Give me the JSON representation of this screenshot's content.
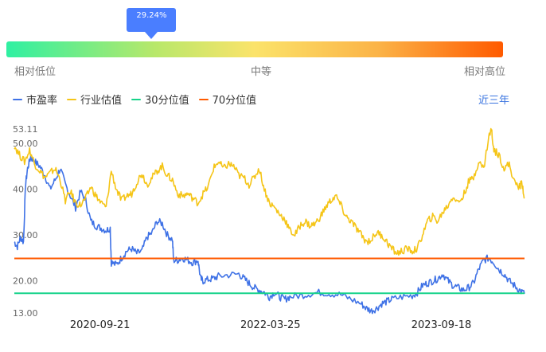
{
  "gauge": {
    "percentile_label": "29.24%",
    "percentile": 0.2924,
    "low_label": "相对低位",
    "mid_label": "中等",
    "high_label": "相对高位",
    "colors": [
      "#2ff0a2",
      "#fbe36a",
      "#ff5a00"
    ]
  },
  "legend": [
    {
      "label": "市盈率",
      "color": "#3f72e6"
    },
    {
      "label": "行业估值",
      "color": "#f5c518"
    },
    {
      "label": "30分位值",
      "color": "#17d38a"
    },
    {
      "label": "70分位值",
      "color": "#ff5a00"
    }
  ],
  "range_button": "近三年",
  "chart_data": {
    "type": "line",
    "ylim": [
      13.0,
      53.11
    ],
    "y_ticks": [
      {
        "label": "53.11",
        "value": 53.11
      },
      {
        "label": "50.00",
        "value": 50.0
      },
      {
        "label": "40.00",
        "value": 40.0
      },
      {
        "label": "30.00",
        "value": 30.0
      },
      {
        "label": "20.00",
        "value": 20.0
      },
      {
        "label": "13.00",
        "value": 13.0
      }
    ],
    "x_ticks": [
      {
        "label": "2020-09-21",
        "t": 0.168
      },
      {
        "label": "2022-03-25",
        "t": 0.502
      },
      {
        "label": "2023-09-18",
        "t": 0.837
      }
    ],
    "reference_lines": [
      {
        "name": "30分位值",
        "value": 17.3,
        "color": "#17d38a"
      },
      {
        "name": "70分位值",
        "value": 24.9,
        "color": "#ff5a00"
      }
    ],
    "series": [
      {
        "name": "市盈率",
        "color": "#3f72e6",
        "points": [
          [
            0.0,
            28.5
          ],
          [
            0.006,
            27.5
          ],
          [
            0.012,
            29.5
          ],
          [
            0.018,
            28.5
          ],
          [
            0.022,
            41.0
          ],
          [
            0.026,
            44.5
          ],
          [
            0.032,
            47.0
          ],
          [
            0.04,
            46.0
          ],
          [
            0.05,
            45.0
          ],
          [
            0.06,
            43.0
          ],
          [
            0.07,
            40.0
          ],
          [
            0.08,
            42.0
          ],
          [
            0.09,
            44.5
          ],
          [
            0.1,
            41.0
          ],
          [
            0.11,
            38.5
          ],
          [
            0.12,
            36.0
          ],
          [
            0.13,
            39.5
          ],
          [
            0.14,
            37.5
          ],
          [
            0.15,
            33.0
          ],
          [
            0.16,
            32.0
          ],
          [
            0.17,
            31.5
          ],
          [
            0.18,
            31.0
          ],
          [
            0.188,
            31.5
          ],
          [
            0.19,
            24.0
          ],
          [
            0.2,
            23.5
          ],
          [
            0.21,
            25.0
          ],
          [
            0.22,
            26.5
          ],
          [
            0.23,
            27.0
          ],
          [
            0.24,
            26.0
          ],
          [
            0.25,
            26.5
          ],
          [
            0.26,
            29.5
          ],
          [
            0.27,
            30.5
          ],
          [
            0.28,
            33.0
          ],
          [
            0.29,
            32.5
          ],
          [
            0.3,
            30.0
          ],
          [
            0.31,
            29.0
          ],
          [
            0.312,
            24.5
          ],
          [
            0.32,
            24.5
          ],
          [
            0.33,
            25.0
          ],
          [
            0.34,
            24.5
          ],
          [
            0.35,
            24.0
          ],
          [
            0.36,
            24.5
          ],
          [
            0.365,
            20.5
          ],
          [
            0.37,
            20.0
          ],
          [
            0.38,
            20.3
          ],
          [
            0.39,
            20.5
          ],
          [
            0.4,
            21.0
          ],
          [
            0.42,
            21.3
          ],
          [
            0.44,
            21.5
          ],
          [
            0.45,
            20.5
          ],
          [
            0.46,
            19.5
          ],
          [
            0.47,
            18.5
          ],
          [
            0.48,
            18.0
          ],
          [
            0.49,
            17.5
          ],
          [
            0.5,
            16.5
          ],
          [
            0.51,
            17.5
          ],
          [
            0.52,
            16.5
          ],
          [
            0.53,
            16.0
          ],
          [
            0.54,
            16.5
          ],
          [
            0.56,
            16.8
          ],
          [
            0.58,
            17.2
          ],
          [
            0.6,
            17.5
          ],
          [
            0.62,
            17.2
          ],
          [
            0.64,
            17.0
          ],
          [
            0.66,
            16.0
          ],
          [
            0.68,
            15.0
          ],
          [
            0.69,
            14.0
          ],
          [
            0.7,
            13.5
          ],
          [
            0.71,
            14.0
          ],
          [
            0.72,
            15.0
          ],
          [
            0.73,
            15.5
          ],
          [
            0.74,
            16.0
          ],
          [
            0.76,
            16.5
          ],
          [
            0.78,
            16.8
          ],
          [
            0.79,
            17.5
          ],
          [
            0.8,
            19.0
          ],
          [
            0.81,
            19.5
          ],
          [
            0.82,
            20.0
          ],
          [
            0.83,
            20.5
          ],
          [
            0.84,
            21.5
          ],
          [
            0.85,
            20.0
          ],
          [
            0.86,
            19.0
          ],
          [
            0.87,
            18.5
          ],
          [
            0.88,
            18.0
          ],
          [
            0.89,
            18.5
          ],
          [
            0.9,
            19.5
          ],
          [
            0.91,
            22.5
          ],
          [
            0.92,
            24.5
          ],
          [
            0.93,
            25.0
          ],
          [
            0.94,
            24.0
          ],
          [
            0.95,
            22.5
          ],
          [
            0.96,
            21.5
          ],
          [
            0.97,
            20.0
          ],
          [
            0.98,
            19.0
          ],
          [
            0.99,
            18.0
          ],
          [
            1.0,
            17.2
          ]
        ]
      },
      {
        "name": "行业估值",
        "color": "#f5c518",
        "points": [
          [
            0.0,
            49.5
          ],
          [
            0.01,
            47.5
          ],
          [
            0.02,
            46.0
          ],
          [
            0.03,
            48.5
          ],
          [
            0.04,
            45.5
          ],
          [
            0.05,
            44.0
          ],
          [
            0.06,
            42.5
          ],
          [
            0.07,
            43.5
          ],
          [
            0.08,
            44.5
          ],
          [
            0.09,
            42.0
          ],
          [
            0.1,
            37.5
          ],
          [
            0.11,
            39.5
          ],
          [
            0.12,
            37.0
          ],
          [
            0.13,
            36.5
          ],
          [
            0.14,
            38.0
          ],
          [
            0.15,
            40.5
          ],
          [
            0.16,
            38.5
          ],
          [
            0.17,
            37.0
          ],
          [
            0.18,
            36.0
          ],
          [
            0.19,
            44.0
          ],
          [
            0.2,
            40.0
          ],
          [
            0.21,
            37.5
          ],
          [
            0.22,
            38.5
          ],
          [
            0.23,
            39.0
          ],
          [
            0.24,
            41.5
          ],
          [
            0.25,
            43.5
          ],
          [
            0.26,
            41.0
          ],
          [
            0.27,
            42.5
          ],
          [
            0.28,
            44.0
          ],
          [
            0.29,
            45.0
          ],
          [
            0.3,
            43.0
          ],
          [
            0.31,
            42.0
          ],
          [
            0.32,
            39.0
          ],
          [
            0.33,
            38.5
          ],
          [
            0.34,
            39.0
          ],
          [
            0.35,
            38.0
          ],
          [
            0.36,
            37.0
          ],
          [
            0.37,
            39.0
          ],
          [
            0.38,
            40.5
          ],
          [
            0.39,
            44.5
          ],
          [
            0.4,
            46.0
          ],
          [
            0.41,
            44.5
          ],
          [
            0.42,
            45.5
          ],
          [
            0.43,
            45.0
          ],
          [
            0.44,
            43.0
          ],
          [
            0.45,
            42.5
          ],
          [
            0.46,
            41.0
          ],
          [
            0.47,
            42.5
          ],
          [
            0.48,
            44.5
          ],
          [
            0.49,
            40.0
          ],
          [
            0.5,
            37.0
          ],
          [
            0.51,
            36.0
          ],
          [
            0.52,
            34.5
          ],
          [
            0.53,
            33.5
          ],
          [
            0.54,
            31.0
          ],
          [
            0.55,
            30.0
          ],
          [
            0.56,
            32.0
          ],
          [
            0.57,
            33.0
          ],
          [
            0.58,
            32.0
          ],
          [
            0.59,
            32.5
          ],
          [
            0.6,
            34.0
          ],
          [
            0.61,
            36.0
          ],
          [
            0.62,
            37.5
          ],
          [
            0.63,
            38.5
          ],
          [
            0.64,
            36.5
          ],
          [
            0.65,
            34.0
          ],
          [
            0.66,
            33.0
          ],
          [
            0.67,
            31.5
          ],
          [
            0.68,
            30.0
          ],
          [
            0.69,
            28.5
          ],
          [
            0.7,
            29.0
          ],
          [
            0.71,
            30.5
          ],
          [
            0.72,
            30.0
          ],
          [
            0.73,
            28.5
          ],
          [
            0.74,
            27.0
          ],
          [
            0.75,
            26.0
          ],
          [
            0.76,
            26.5
          ],
          [
            0.77,
            27.0
          ],
          [
            0.78,
            26.5
          ],
          [
            0.79,
            27.0
          ],
          [
            0.8,
            30.0
          ],
          [
            0.81,
            33.0
          ],
          [
            0.82,
            34.0
          ],
          [
            0.83,
            33.0
          ],
          [
            0.84,
            35.0
          ],
          [
            0.85,
            36.5
          ],
          [
            0.86,
            38.5
          ],
          [
            0.87,
            37.0
          ],
          [
            0.88,
            38.5
          ],
          [
            0.89,
            41.5
          ],
          [
            0.9,
            42.5
          ],
          [
            0.91,
            46.0
          ],
          [
            0.92,
            44.5
          ],
          [
            0.93,
            51.5
          ],
          [
            0.935,
            53.0
          ],
          [
            0.94,
            48.5
          ],
          [
            0.95,
            47.5
          ],
          [
            0.96,
            44.5
          ],
          [
            0.97,
            45.5
          ],
          [
            0.98,
            41.5
          ],
          [
            0.99,
            40.5
          ],
          [
            0.995,
            41.5
          ],
          [
            1.0,
            38.0
          ]
        ]
      }
    ]
  }
}
